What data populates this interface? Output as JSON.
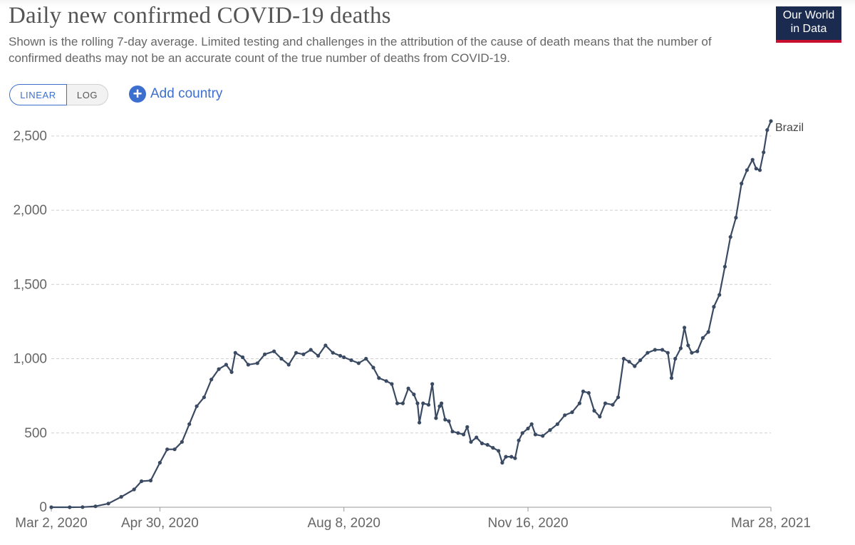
{
  "header": {
    "title": "Daily new confirmed COVID-19 deaths",
    "subtitle": "Shown is the rolling 7-day average. Limited testing and challenges in the attribution of the cause of death means that the number of confirmed deaths may not be an accurate count of the true number of deaths from COVID-19.",
    "logo_line1": "Our World",
    "logo_line2": "in Data"
  },
  "controls": {
    "linear_label": "LINEAR",
    "log_label": "LOG",
    "add_country_label": "Add country",
    "add_icon": "plus-circle-icon",
    "accent_color": "#3d6fcf"
  },
  "chart_data": {
    "type": "line",
    "title": "Daily new confirmed COVID-19 deaths",
    "xlabel": "",
    "ylabel": "",
    "x_ticks": [
      "Mar 2, 2020",
      "Apr 30, 2020",
      "Aug 8, 2020",
      "Nov 16, 2020",
      "Mar 28, 2021"
    ],
    "y_ticks": [
      "0",
      "500",
      "1,000",
      "1,500",
      "2,000",
      "2,500"
    ],
    "y_tick_values": [
      0,
      500,
      1000,
      1500,
      2000,
      2500
    ],
    "ylim": [
      0,
      2600
    ],
    "xlim": [
      "2020-03-02",
      "2021-03-28"
    ],
    "grid": "horizontal dashed",
    "series": [
      {
        "name": "Brazil",
        "color": "#3b4a63",
        "points": [
          [
            "2020-03-02",
            0
          ],
          [
            "2020-03-12",
            0
          ],
          [
            "2020-03-19",
            1
          ],
          [
            "2020-03-26",
            6
          ],
          [
            "2020-04-02",
            25
          ],
          [
            "2020-04-09",
            70
          ],
          [
            "2020-04-16",
            120
          ],
          [
            "2020-04-20",
            175
          ],
          [
            "2020-04-25",
            180
          ],
          [
            "2020-04-30",
            300
          ],
          [
            "2020-05-04",
            390
          ],
          [
            "2020-05-08",
            390
          ],
          [
            "2020-05-12",
            440
          ],
          [
            "2020-05-16",
            560
          ],
          [
            "2020-05-20",
            680
          ],
          [
            "2020-05-24",
            740
          ],
          [
            "2020-05-28",
            860
          ],
          [
            "2020-06-01",
            930
          ],
          [
            "2020-06-05",
            960
          ],
          [
            "2020-06-08",
            910
          ],
          [
            "2020-06-10",
            1040
          ],
          [
            "2020-06-14",
            1010
          ],
          [
            "2020-06-17",
            960
          ],
          [
            "2020-06-22",
            970
          ],
          [
            "2020-06-26",
            1030
          ],
          [
            "2020-07-01",
            1050
          ],
          [
            "2020-07-05",
            1000
          ],
          [
            "2020-07-09",
            960
          ],
          [
            "2020-07-13",
            1040
          ],
          [
            "2020-07-17",
            1030
          ],
          [
            "2020-07-21",
            1060
          ],
          [
            "2020-07-25",
            1020
          ],
          [
            "2020-07-29",
            1090
          ],
          [
            "2020-08-02",
            1040
          ],
          [
            "2020-08-06",
            1020
          ],
          [
            "2020-08-08",
            1010
          ],
          [
            "2020-08-12",
            990
          ],
          [
            "2020-08-16",
            970
          ],
          [
            "2020-08-20",
            1000
          ],
          [
            "2020-08-24",
            940
          ],
          [
            "2020-08-27",
            870
          ],
          [
            "2020-08-31",
            850
          ],
          [
            "2020-09-03",
            830
          ],
          [
            "2020-09-06",
            700
          ],
          [
            "2020-09-09",
            700
          ],
          [
            "2020-09-12",
            800
          ],
          [
            "2020-09-15",
            760
          ],
          [
            "2020-09-17",
            700
          ],
          [
            "2020-09-18",
            570
          ],
          [
            "2020-09-20",
            700
          ],
          [
            "2020-09-23",
            690
          ],
          [
            "2020-09-25",
            830
          ],
          [
            "2020-09-27",
            600
          ],
          [
            "2020-09-29",
            680
          ],
          [
            "2020-09-30",
            700
          ],
          [
            "2020-10-02",
            590
          ],
          [
            "2020-10-04",
            580
          ],
          [
            "2020-10-06",
            510
          ],
          [
            "2020-10-09",
            500
          ],
          [
            "2020-10-12",
            490
          ],
          [
            "2020-10-14",
            540
          ],
          [
            "2020-10-16",
            440
          ],
          [
            "2020-10-19",
            470
          ],
          [
            "2020-10-22",
            430
          ],
          [
            "2020-10-25",
            420
          ],
          [
            "2020-10-28",
            400
          ],
          [
            "2020-10-31",
            380
          ],
          [
            "2020-11-02",
            300
          ],
          [
            "2020-11-04",
            340
          ],
          [
            "2020-11-07",
            340
          ],
          [
            "2020-11-09",
            330
          ],
          [
            "2020-11-11",
            450
          ],
          [
            "2020-11-13",
            500
          ],
          [
            "2020-11-16",
            530
          ],
          [
            "2020-11-18",
            560
          ],
          [
            "2020-11-20",
            490
          ],
          [
            "2020-11-24",
            480
          ],
          [
            "2020-11-28",
            520
          ],
          [
            "2020-12-02",
            560
          ],
          [
            "2020-12-06",
            620
          ],
          [
            "2020-12-10",
            640
          ],
          [
            "2020-12-14",
            700
          ],
          [
            "2020-12-16",
            780
          ],
          [
            "2020-12-19",
            770
          ],
          [
            "2020-12-22",
            650
          ],
          [
            "2020-12-25",
            610
          ],
          [
            "2020-12-28",
            700
          ],
          [
            "2021-01-01",
            690
          ],
          [
            "2021-01-04",
            740
          ],
          [
            "2021-01-07",
            1000
          ],
          [
            "2021-01-10",
            980
          ],
          [
            "2021-01-13",
            950
          ],
          [
            "2021-01-16",
            990
          ],
          [
            "2021-01-20",
            1040
          ],
          [
            "2021-01-24",
            1060
          ],
          [
            "2021-01-28",
            1060
          ],
          [
            "2021-01-31",
            1040
          ],
          [
            "2021-02-02",
            870
          ],
          [
            "2021-02-04",
            1000
          ],
          [
            "2021-02-07",
            1070
          ],
          [
            "2021-02-09",
            1210
          ],
          [
            "2021-02-11",
            1090
          ],
          [
            "2021-02-13",
            1040
          ],
          [
            "2021-02-16",
            1050
          ],
          [
            "2021-02-19",
            1140
          ],
          [
            "2021-02-22",
            1180
          ],
          [
            "2021-02-25",
            1350
          ],
          [
            "2021-02-28",
            1430
          ],
          [
            "2021-03-03",
            1620
          ],
          [
            "2021-03-06",
            1820
          ],
          [
            "2021-03-09",
            1950
          ],
          [
            "2021-03-12",
            2180
          ],
          [
            "2021-03-15",
            2270
          ],
          [
            "2021-03-18",
            2340
          ],
          [
            "2021-03-20",
            2280
          ],
          [
            "2021-03-22",
            2270
          ],
          [
            "2021-03-24",
            2390
          ],
          [
            "2021-03-26",
            2540
          ],
          [
            "2021-03-28",
            2600
          ]
        ]
      }
    ]
  }
}
